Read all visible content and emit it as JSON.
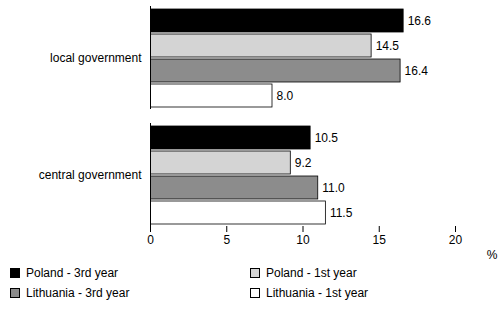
{
  "chart_data": {
    "type": "bar",
    "orientation": "horizontal",
    "categories": [
      "local government",
      "central government"
    ],
    "series": [
      {
        "name": "Poland - 3rd year",
        "color": "#000000",
        "values": [
          16.6,
          10.5
        ],
        "value_labels": [
          "16.6",
          "10.5"
        ]
      },
      {
        "name": "Poland - 1st year",
        "color": "#d4d4d4",
        "values": [
          14.5,
          9.2
        ],
        "value_labels": [
          "14.5",
          "9.2"
        ]
      },
      {
        "name": "Lithuania - 3rd year",
        "color": "#8c8c8c",
        "values": [
          16.4,
          11.0
        ],
        "value_labels": [
          "16.4",
          "11.0"
        ]
      },
      {
        "name": "Lithuania - 1st year",
        "color": "#ffffff",
        "values": [
          8.0,
          11.5
        ],
        "value_labels": [
          "8.0",
          "11.5"
        ]
      }
    ],
    "xlabel": "%",
    "xlim": [
      0,
      20
    ],
    "xticks": [
      0,
      5,
      10,
      15,
      20
    ],
    "grid": false,
    "data_labels": true,
    "legend": "bottom"
  }
}
